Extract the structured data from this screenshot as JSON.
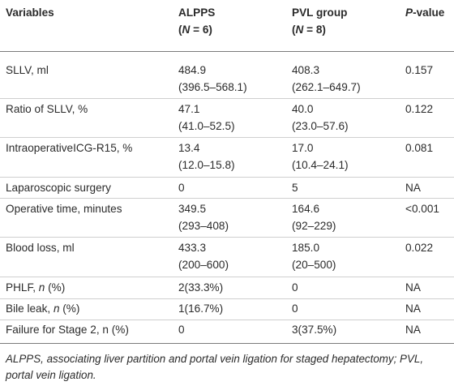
{
  "header": {
    "variables": "Variables",
    "alpps": "ALPPS",
    "alpps_n_open": "(",
    "alpps_n_var": "N",
    "alpps_n_rest": " = 6)",
    "pvl": "PVL group",
    "pvl_n_open": "(",
    "pvl_n_var": "N",
    "pvl_n_rest": " = 8)",
    "p_var": "P",
    "p_rest": "-value"
  },
  "rows": [
    {
      "label": "SLLV, ml",
      "alpps": "484.9",
      "alpps2": "(396.5–568.1)",
      "pvl": "408.3",
      "pvl2": "(262.1–649.7)",
      "p": "0.157"
    },
    {
      "label": "Ratio of SLLV, %",
      "alpps": "47.1",
      "alpps2": "(41.0–52.5)",
      "pvl": "40.0",
      "pvl2": "(23.0–57.6)",
      "p": "0.122"
    },
    {
      "label": "IntraoperativeICG-R15, %",
      "alpps": "13.4",
      "alpps2": "(12.0–15.8)",
      "pvl": "17.0",
      "pvl2": "(10.4–24.1)",
      "p": "0.081"
    },
    {
      "label": "Laparoscopic surgery",
      "alpps": "0",
      "pvl": "5",
      "p": "NA"
    },
    {
      "label": "Operative time, minutes",
      "alpps": "349.5",
      "alpps2": "(293–408)",
      "pvl": "164.6",
      "pvl2": "(92–229)",
      "p": "<0.001"
    },
    {
      "label": "Blood loss, ml",
      "alpps": "433.3",
      "alpps2": "(200–600)",
      "pvl": "185.0",
      "pvl2": "(20–500)",
      "p": "0.022"
    },
    {
      "label": "PHLF, ",
      "label_var": "n",
      "label_rest": " (%)",
      "alpps": "2(33.3%)",
      "pvl": "0",
      "p": "NA"
    },
    {
      "label": "Bile leak, ",
      "label_var": "n",
      "label_rest": " (%)",
      "alpps": "1(16.7%)",
      "pvl": "0",
      "p": "NA"
    },
    {
      "label": "Failure for Stage 2, n (%)",
      "alpps": "0",
      "pvl": "3(37.5%)",
      "p": "NA"
    }
  ],
  "footnote": "ALPPS, associating liver partition and portal vein ligation for staged hepatectomy; PVL, portal vein ligation."
}
